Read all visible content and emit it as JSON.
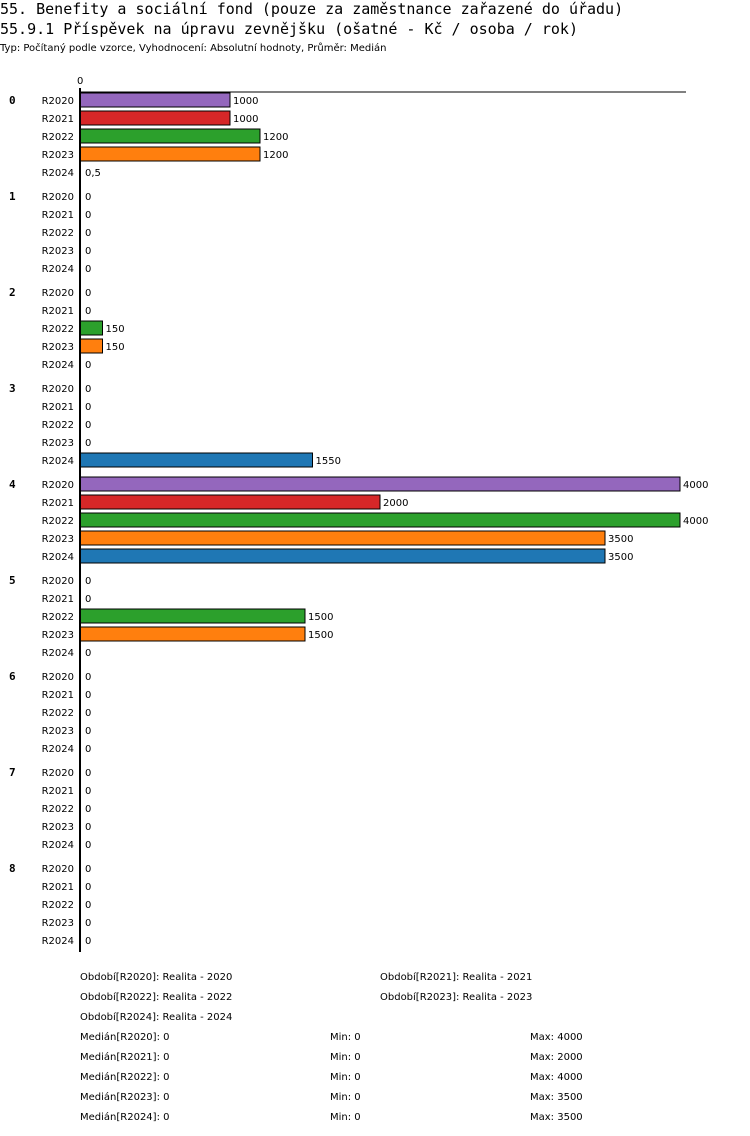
{
  "header": {
    "title": "55. Benefity a sociální fond (pouze za zaměstnance zařazené do úřadu)",
    "subtitle": "55.9.1 Příspěvek na úpravu zevnějšku (ošatné - Kč / osoba / rok)",
    "type_line": "Typ: Počítaný podle vzorce, Vyhodnocení: Absolutní hodnoty, Průměr: Medián"
  },
  "chart_data": {
    "type": "bar",
    "orientation": "horizontal",
    "axis_zero_label": "0",
    "xlim": [
      0,
      4000
    ],
    "categories": [
      "0",
      "1",
      "2",
      "3",
      "4",
      "5",
      "6",
      "7",
      "8"
    ],
    "series": [
      {
        "name": "R2020",
        "color": "#9467bd",
        "values": [
          1000,
          0,
          0,
          0,
          4000,
          0,
          0,
          0,
          0
        ],
        "labels": [
          "1000",
          "0",
          "0",
          "0",
          "4000",
          "0",
          "0",
          "0",
          "0"
        ]
      },
      {
        "name": "R2021",
        "color": "#d62728",
        "values": [
          1000,
          0,
          0,
          0,
          2000,
          0,
          0,
          0,
          0
        ],
        "labels": [
          "1000",
          "0",
          "0",
          "0",
          "2000",
          "0",
          "0",
          "0",
          "0"
        ]
      },
      {
        "name": "R2022",
        "color": "#2ca02c",
        "values": [
          1200,
          0,
          150,
          0,
          4000,
          1500,
          0,
          0,
          0
        ],
        "labels": [
          "1200",
          "0",
          "150",
          "0",
          "4000",
          "1500",
          "0",
          "0",
          "0"
        ]
      },
      {
        "name": "R2023",
        "color": "#ff7f0e",
        "values": [
          1200,
          0,
          150,
          0,
          3500,
          1500,
          0,
          0,
          0
        ],
        "labels": [
          "1200",
          "0",
          "150",
          "0",
          "3500",
          "1500",
          "0",
          "0",
          "0"
        ]
      },
      {
        "name": "R2024",
        "color": "#1f77b4",
        "values": [
          0.5,
          0,
          0,
          1550,
          3500,
          0,
          0,
          0,
          0
        ],
        "labels": [
          "0,5",
          "0",
          "0",
          "1550",
          "3500",
          "0",
          "0",
          "0",
          "0"
        ]
      }
    ]
  },
  "legend": {
    "periods": [
      "Období[R2020]: Realita - 2020",
      "Období[R2021]: Realita - 2021",
      "Období[R2022]: Realita - 2022",
      "Období[R2023]: Realita - 2023",
      "Období[R2024]: Realita - 2024"
    ],
    "stats": [
      {
        "median": "Medián[R2020]: 0",
        "min": "Min: 0",
        "max": "Max: 4000"
      },
      {
        "median": "Medián[R2021]: 0",
        "min": "Min: 0",
        "max": "Max: 2000"
      },
      {
        "median": "Medián[R2022]: 0",
        "min": "Min: 0",
        "max": "Max: 4000"
      },
      {
        "median": "Medián[R2023]: 0",
        "min": "Min: 0",
        "max": "Max: 3500"
      },
      {
        "median": "Medián[R2024]: 0",
        "min": "Min: 0",
        "max": "Max: 3500"
      }
    ]
  }
}
